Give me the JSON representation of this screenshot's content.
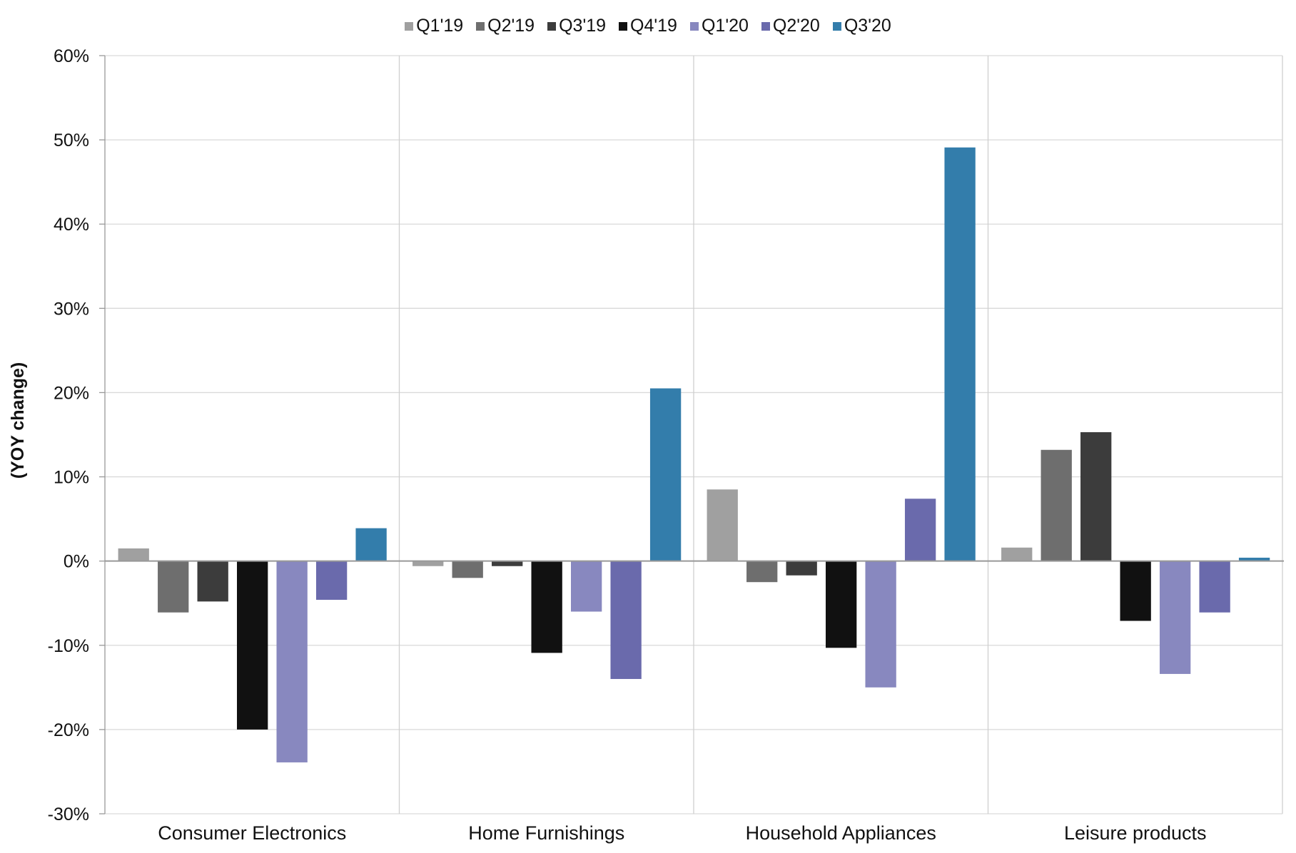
{
  "chart_data": {
    "type": "bar",
    "title": "",
    "xlabel": "",
    "ylabel": "(YOY change)",
    "ylim": [
      -30,
      60
    ],
    "yticks": [
      -30,
      -20,
      -10,
      0,
      10,
      20,
      30,
      40,
      50,
      60
    ],
    "ytick_labels": [
      "-30%",
      "-20%",
      "-10%",
      "0%",
      "10%",
      "20%",
      "30%",
      "40%",
      "50%",
      "60%"
    ],
    "grid": true,
    "legend_position": "top-center",
    "categories": [
      "Consumer Electronics",
      "Home Furnishings",
      "Household Appliances",
      "Leisure products"
    ],
    "series": [
      {
        "name": "Q1'19",
        "color": "#a0a0a0",
        "values": [
          1.5,
          -0.6,
          8.5,
          1.6
        ]
      },
      {
        "name": "Q2'19",
        "color": "#6e6e6e",
        "values": [
          -6.1,
          -2.0,
          -2.5,
          13.2
        ]
      },
      {
        "name": "Q3'19",
        "color": "#3c3c3c",
        "values": [
          -4.8,
          -0.6,
          -1.7,
          15.3
        ]
      },
      {
        "name": "Q4'19",
        "color": "#111111",
        "values": [
          -20.0,
          -10.9,
          -10.3,
          -7.1
        ]
      },
      {
        "name": "Q1'20",
        "color": "#8888bf",
        "values": [
          -23.9,
          -6.0,
          -15.0,
          -13.4
        ]
      },
      {
        "name": "Q2'20",
        "color": "#6a6aac",
        "values": [
          -4.6,
          -14.0,
          7.4,
          -6.1
        ]
      },
      {
        "name": "Q3'20",
        "color": "#337dab",
        "values": [
          3.9,
          20.5,
          49.1,
          0.4
        ]
      }
    ]
  }
}
